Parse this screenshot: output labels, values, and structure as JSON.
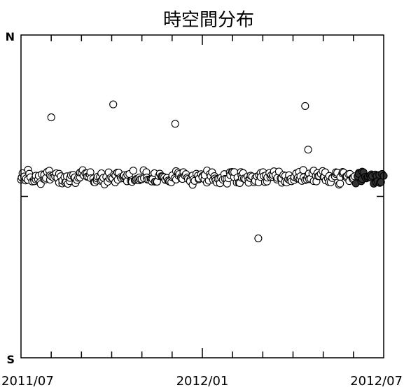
{
  "chart_data": {
    "type": "scatter",
    "title": "時空間分布",
    "y_top_label": "N",
    "y_bottom_label": "S",
    "x_tick_labels": [
      "2011/07",
      "2012/01",
      "2012/07"
    ],
    "xlim": [
      0,
      12
    ],
    "ylim": [
      0,
      1
    ],
    "grid": false,
    "legend": "none",
    "colors": {
      "marker_stroke": "#000000",
      "marker_fill": "#ffffff",
      "recent_fill": "#333333",
      "axis": "#000000"
    },
    "outliers": [
      {
        "x": 1.0,
        "y": 0.745
      },
      {
        "x": 3.05,
        "y": 0.785
      },
      {
        "x": 5.1,
        "y": 0.725
      },
      {
        "x": 7.85,
        "y": 0.37
      },
      {
        "x": 9.4,
        "y": 0.78
      },
      {
        "x": 9.5,
        "y": 0.645
      }
    ],
    "band": {
      "x_start": 0.0,
      "x_end": 12.0,
      "center_y": 0.56,
      "spread_y": 0.025,
      "count": 330,
      "recent_x_start": 11.05
    }
  }
}
